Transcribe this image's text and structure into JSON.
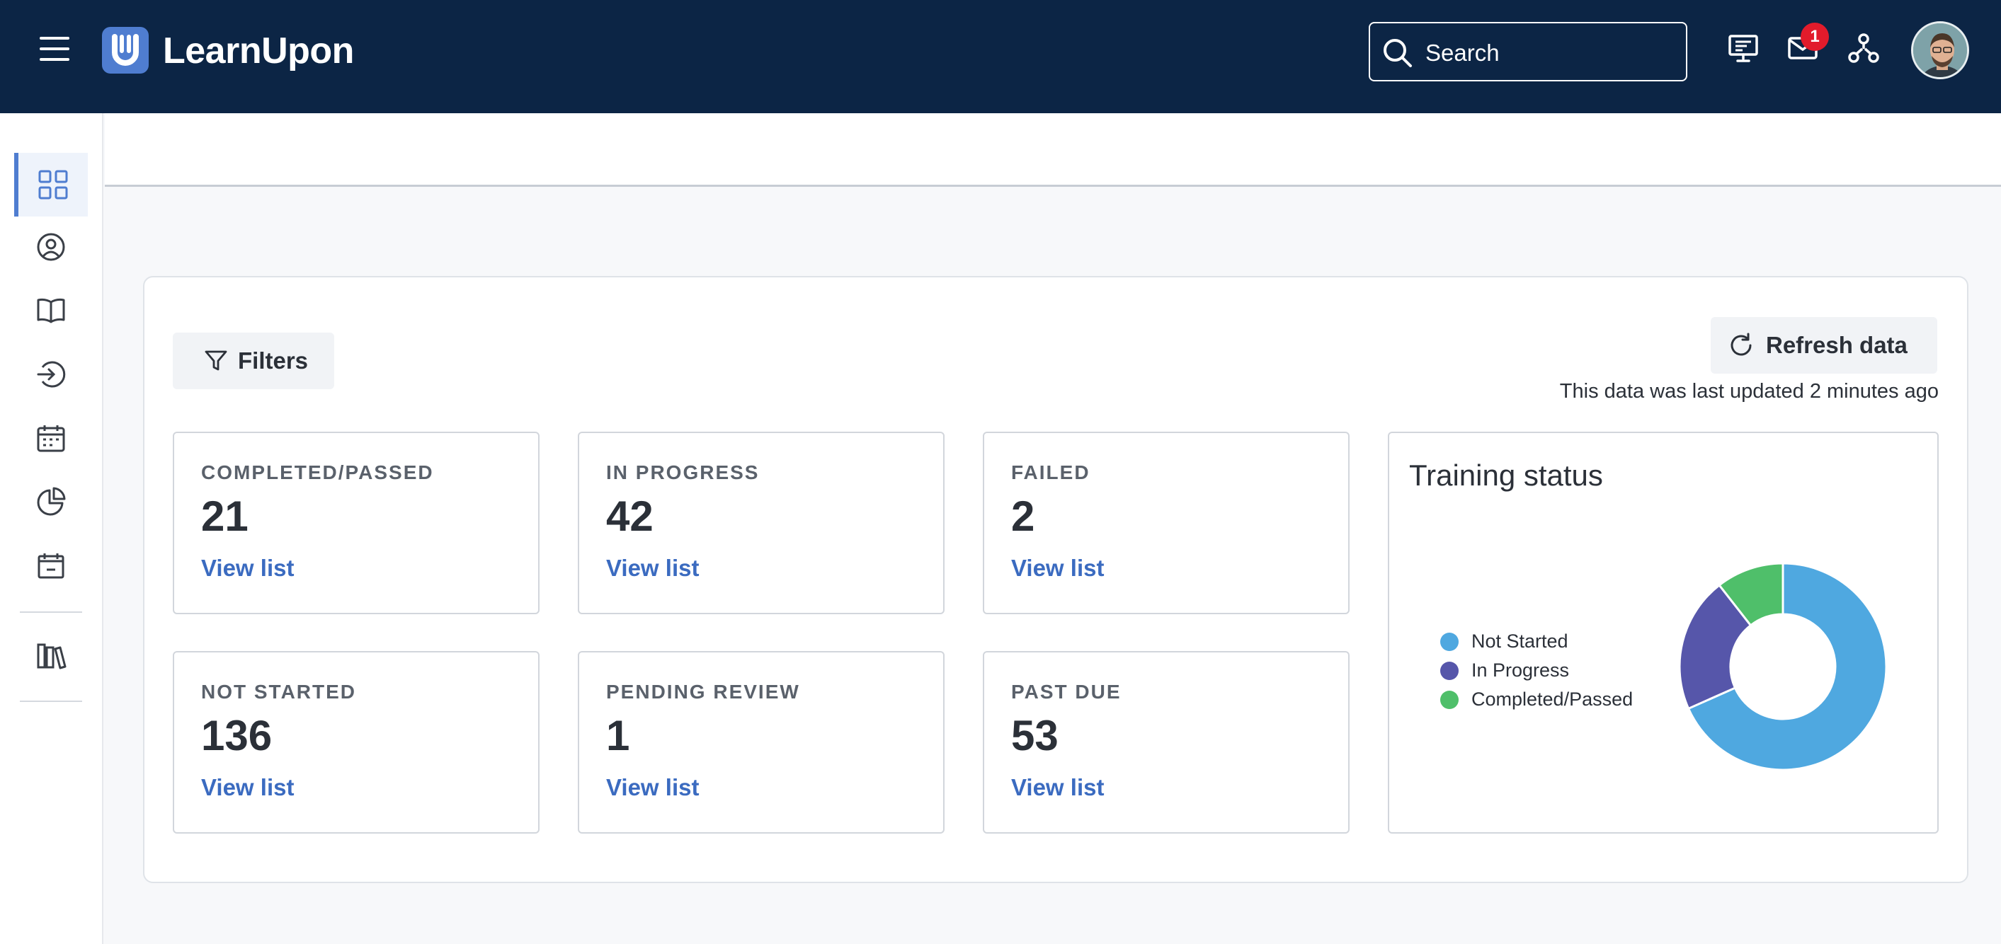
{
  "app": {
    "logo_text": "LearnUpon"
  },
  "header": {
    "search_placeholder": "Search",
    "notification_count": "1"
  },
  "toolbar": {
    "filters_label": "Filters",
    "refresh_label": "Refresh data",
    "last_updated": "This data was last updated 2 minutes ago"
  },
  "sidebar": {
    "items": [
      {
        "icon": "dashboard-grid-icon",
        "active": true
      },
      {
        "icon": "user-circle-icon",
        "active": false
      },
      {
        "icon": "book-icon",
        "active": false
      },
      {
        "icon": "enroll-arrow-icon",
        "active": false
      },
      {
        "icon": "calendar-icon",
        "active": false
      },
      {
        "icon": "pie-chart-icon",
        "active": false
      },
      {
        "icon": "calendar-check-icon",
        "active": false
      },
      {
        "icon": "library-icon",
        "active": false
      }
    ]
  },
  "cards": [
    {
      "label": "COMPLETED/PASSED",
      "value": "21",
      "link": "View list"
    },
    {
      "label": "IN PROGRESS",
      "value": "42",
      "link": "View list"
    },
    {
      "label": "FAILED",
      "value": "2",
      "link": "View list"
    },
    {
      "label": "NOT STARTED",
      "value": "136",
      "link": "View list"
    },
    {
      "label": "PENDING REVIEW",
      "value": "1",
      "link": "View list"
    },
    {
      "label": "PAST DUE",
      "value": "53",
      "link": "View list"
    }
  ],
  "chart_data": {
    "type": "pie",
    "title": "Training status",
    "legend_position": "left",
    "categories": [
      "Not Started",
      "In Progress",
      "Completed/Passed"
    ],
    "values": [
      136,
      42,
      21
    ],
    "colors": [
      "#4fa8e0",
      "#5656aa",
      "#4fbf6a"
    ]
  }
}
